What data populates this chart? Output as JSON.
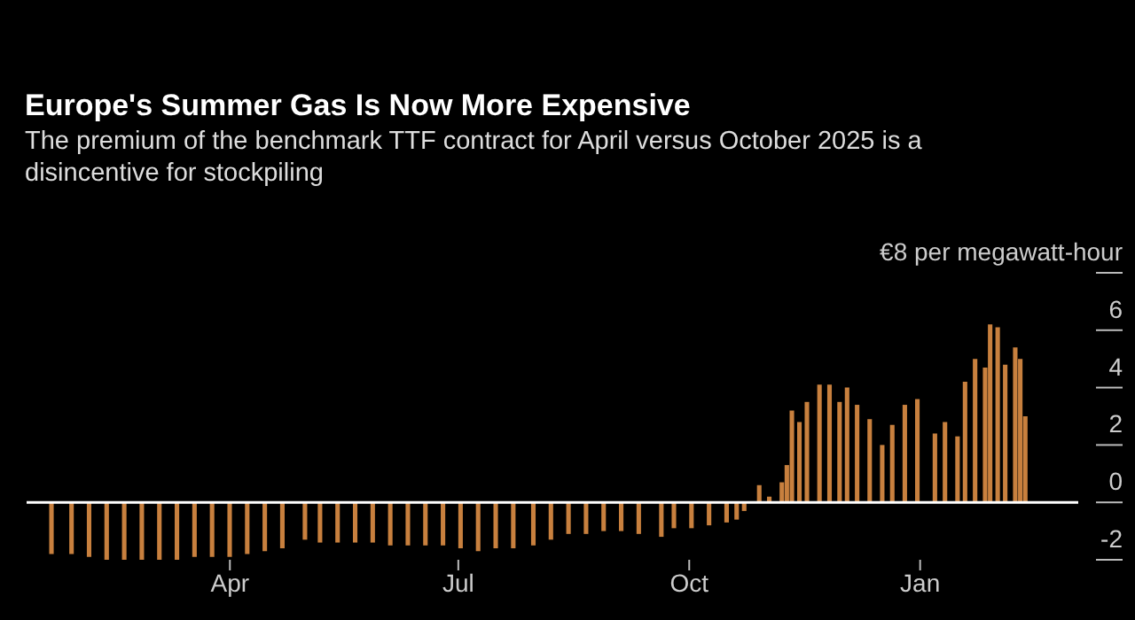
{
  "chart_data": {
    "type": "bar",
    "title": "Europe's Summer Gas Is Now More Expensive",
    "subtitle": "The premium of the benchmark TTF contract for April versus October 2025 is a disincentive for stockpiling",
    "x": [
      "2024-01-21",
      "2024-01-29",
      "2024-02-05",
      "2024-02-12",
      "2024-02-19",
      "2024-02-26",
      "2024-03-04",
      "2024-03-11",
      "2024-03-18",
      "2024-03-25",
      "2024-04-01",
      "2024-04-08",
      "2024-04-15",
      "2024-04-22",
      "2024-05-01",
      "2024-05-07",
      "2024-05-14",
      "2024-05-21",
      "2024-05-28",
      "2024-06-04",
      "2024-06-11",
      "2024-06-18",
      "2024-06-25",
      "2024-07-02",
      "2024-07-09",
      "2024-07-16",
      "2024-07-23",
      "2024-07-31",
      "2024-08-07",
      "2024-08-14",
      "2024-08-21",
      "2024-08-28",
      "2024-09-04",
      "2024-09-11",
      "2024-09-20",
      "2024-09-25",
      "2024-10-02",
      "2024-10-09",
      "2024-10-16",
      "2024-10-20",
      "2024-10-23",
      "2024-10-29",
      "2024-11-02",
      "2024-11-07",
      "2024-11-09",
      "2024-11-11",
      "2024-11-14",
      "2024-11-17",
      "2024-11-22",
      "2024-11-26",
      "2024-11-30",
      "2024-12-03",
      "2024-12-07",
      "2024-12-12",
      "2024-12-17",
      "2024-12-21",
      "2024-12-26",
      "2024-12-31",
      "2025-01-07",
      "2025-01-11",
      "2025-01-16",
      "2025-01-19",
      "2025-01-23",
      "2025-01-27",
      "2025-01-29",
      "2025-02-01",
      "2025-02-04",
      "2025-02-08",
      "2025-02-10",
      "2025-02-12"
    ],
    "values": [
      -1.8,
      -1.8,
      -1.9,
      -2.0,
      -2.0,
      -2.0,
      -2.0,
      -2.0,
      -1.9,
      -1.9,
      -1.9,
      -1.8,
      -1.7,
      -1.6,
      -1.3,
      -1.4,
      -1.4,
      -1.4,
      -1.4,
      -1.5,
      -1.5,
      -1.5,
      -1.5,
      -1.6,
      -1.7,
      -1.6,
      -1.6,
      -1.5,
      -1.3,
      -1.1,
      -1.1,
      -1.0,
      -1.0,
      -1.1,
      -1.2,
      -0.9,
      -0.9,
      -0.8,
      -0.7,
      -0.6,
      -0.3,
      0.6,
      0.2,
      0.7,
      1.3,
      3.2,
      2.8,
      3.5,
      4.1,
      4.1,
      3.5,
      4.0,
      3.4,
      2.9,
      2.0,
      2.7,
      3.4,
      3.6,
      2.4,
      2.8,
      2.3,
      4.2,
      5.0,
      4.7,
      6.2,
      6.1,
      4.8,
      5.4,
      5.0,
      3.0
    ],
    "color": "#c8803e",
    "xlim": [
      "2024-01-11",
      "2025-03-05"
    ],
    "xticks": [
      {
        "value": "2024-04-01",
        "label": "Apr"
      },
      {
        "value": "2024-07-01",
        "label": "Jul"
      },
      {
        "value": "2024-10-01",
        "label": "Oct"
      },
      {
        "value": "2025-01-01",
        "label": "Jan"
      }
    ],
    "ylim": [
      -2,
      8
    ],
    "yticks": [
      {
        "value": 8,
        "label": "€8 per megawatt-hour"
      },
      6,
      4,
      2,
      0,
      -2
    ],
    "ref_lines": [
      {
        "axis": "y",
        "value": 0,
        "color": "#ffffff"
      }
    ]
  }
}
